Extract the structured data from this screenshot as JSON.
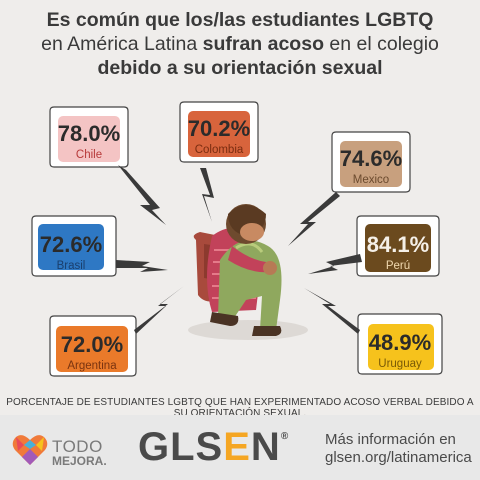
{
  "title": {
    "line1": "Es común que los/las estudiantes LGBTQ",
    "line2_pre": "en América Latina ",
    "line2_bold": "sufran acoso",
    "line2_post": " en el colegio",
    "line3_bold": "debido a su orientación sexual"
  },
  "stats": [
    {
      "country": "Chile",
      "percent": "78.0%",
      "color": "#f4c4c4",
      "text_color": "#b73a3a"
    },
    {
      "country": "Colombia",
      "percent": "70.2%",
      "color": "#d8643c",
      "text_color": "#7a2c10"
    },
    {
      "country": "Mexico",
      "percent": "74.6%",
      "color": "#c8a07e",
      "text_color": "#6b4a2e"
    },
    {
      "country": "Brasil",
      "percent": "72.6%",
      "color": "#2e78c4",
      "text_color": "#1a3f6e"
    },
    {
      "country": "Perú",
      "percent": "84.1%",
      "color": "#6b4a1e",
      "text_color": "#f1d9b0"
    },
    {
      "country": "Argentina",
      "percent": "72.0%",
      "color": "#ea7a2a",
      "text_color": "#7a3410"
    },
    {
      "country": "Uruguay",
      "percent": "48.9%",
      "color": "#f6c21c",
      "text_color": "#7a5a06"
    }
  ],
  "caption": "PORCENTAJE DE ESTUDIANTES LGBTQ QUE HAN EXPERIMENTADO ACOSO VERBAL DEBIDO A SU ORIENTACIÓN SEXUAL.",
  "footer": {
    "todo_line1": "TODO",
    "todo_line2": "MEJORA.",
    "glsen_pre": "GLS",
    "glsen_e": "E",
    "glsen_post": "N",
    "glsen_reg": "®",
    "more_line1": "Más información en",
    "more_line2": "glsen.org/latinamerica"
  }
}
